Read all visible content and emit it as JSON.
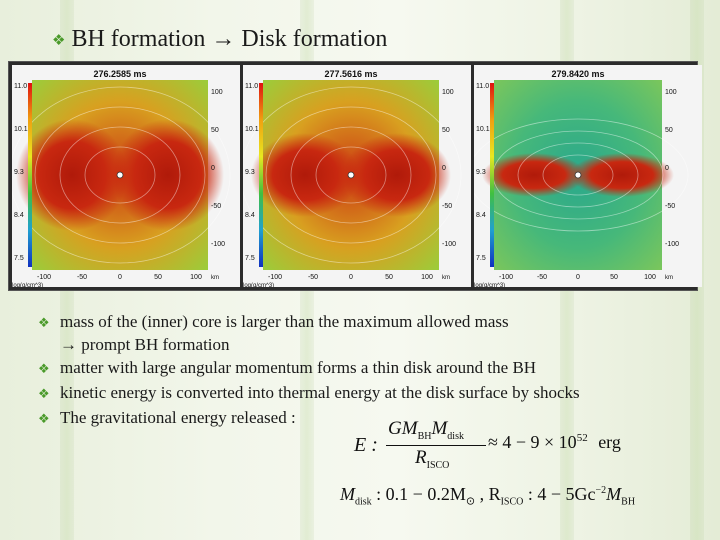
{
  "slide": {
    "title": "BH formation → Disk formation",
    "accent_color": "#4a9a2a",
    "bullet_icon": "diamond-check"
  },
  "panels": [
    {
      "time": "276.2585 ms",
      "colorbar": [
        "11.0",
        "10.1",
        "9.3",
        "8.4",
        "7.5"
      ],
      "show_units": true
    },
    {
      "time": "277.5616 ms",
      "colorbar": [
        "11.0",
        "10.1",
        "9.3",
        "8.4",
        "7.5"
      ],
      "show_units": true
    },
    {
      "time": "279.8420 ms",
      "colorbar": [
        "11.0",
        "10.1",
        "9.3",
        "8.4",
        "7.5"
      ],
      "show_units": true
    }
  ],
  "axes": {
    "y_ticks": [
      "100",
      "50",
      "0",
      "-50",
      "-100"
    ],
    "x_ticks": [
      "-100",
      "-50",
      "0",
      "50",
      "100"
    ],
    "x_unit": "km",
    "colorbar_label": "log(g/cm^3)"
  },
  "bullets": [
    {
      "line1": "mass of the (inner) core is larger than the maximum allowed mass",
      "line2": "→  prompt BH formation"
    },
    {
      "line1": "matter with large angular momentum forms a thin disk around the BH",
      "line2": ""
    },
    {
      "line1": "kinetic energy is converted into thermal energy at the disk surface by shocks",
      "line2": ""
    },
    {
      "line1": "The gravitational energy released :",
      "line2": ""
    }
  ],
  "equation": {
    "lhs": "E :",
    "num": "GM",
    "num_sub": "BH",
    "num2": "M",
    "num2_sub": "disk",
    "den": "R",
    "den_sub": "ISCO",
    "approx": "≈ 4 − 9 × 10",
    "exp": "52",
    "unit": "erg",
    "line2": "M",
    "line2_sub": "disk",
    "line2_val": ": 0.1 − 0.2M",
    "sun": "⊙",
    "r_label": ",  R",
    "r_sub": "ISCO",
    "r_val": ": 4 − 5Gc",
    "r_exp": "−2",
    "r_m": "M",
    "r_m_sub": "BH"
  }
}
